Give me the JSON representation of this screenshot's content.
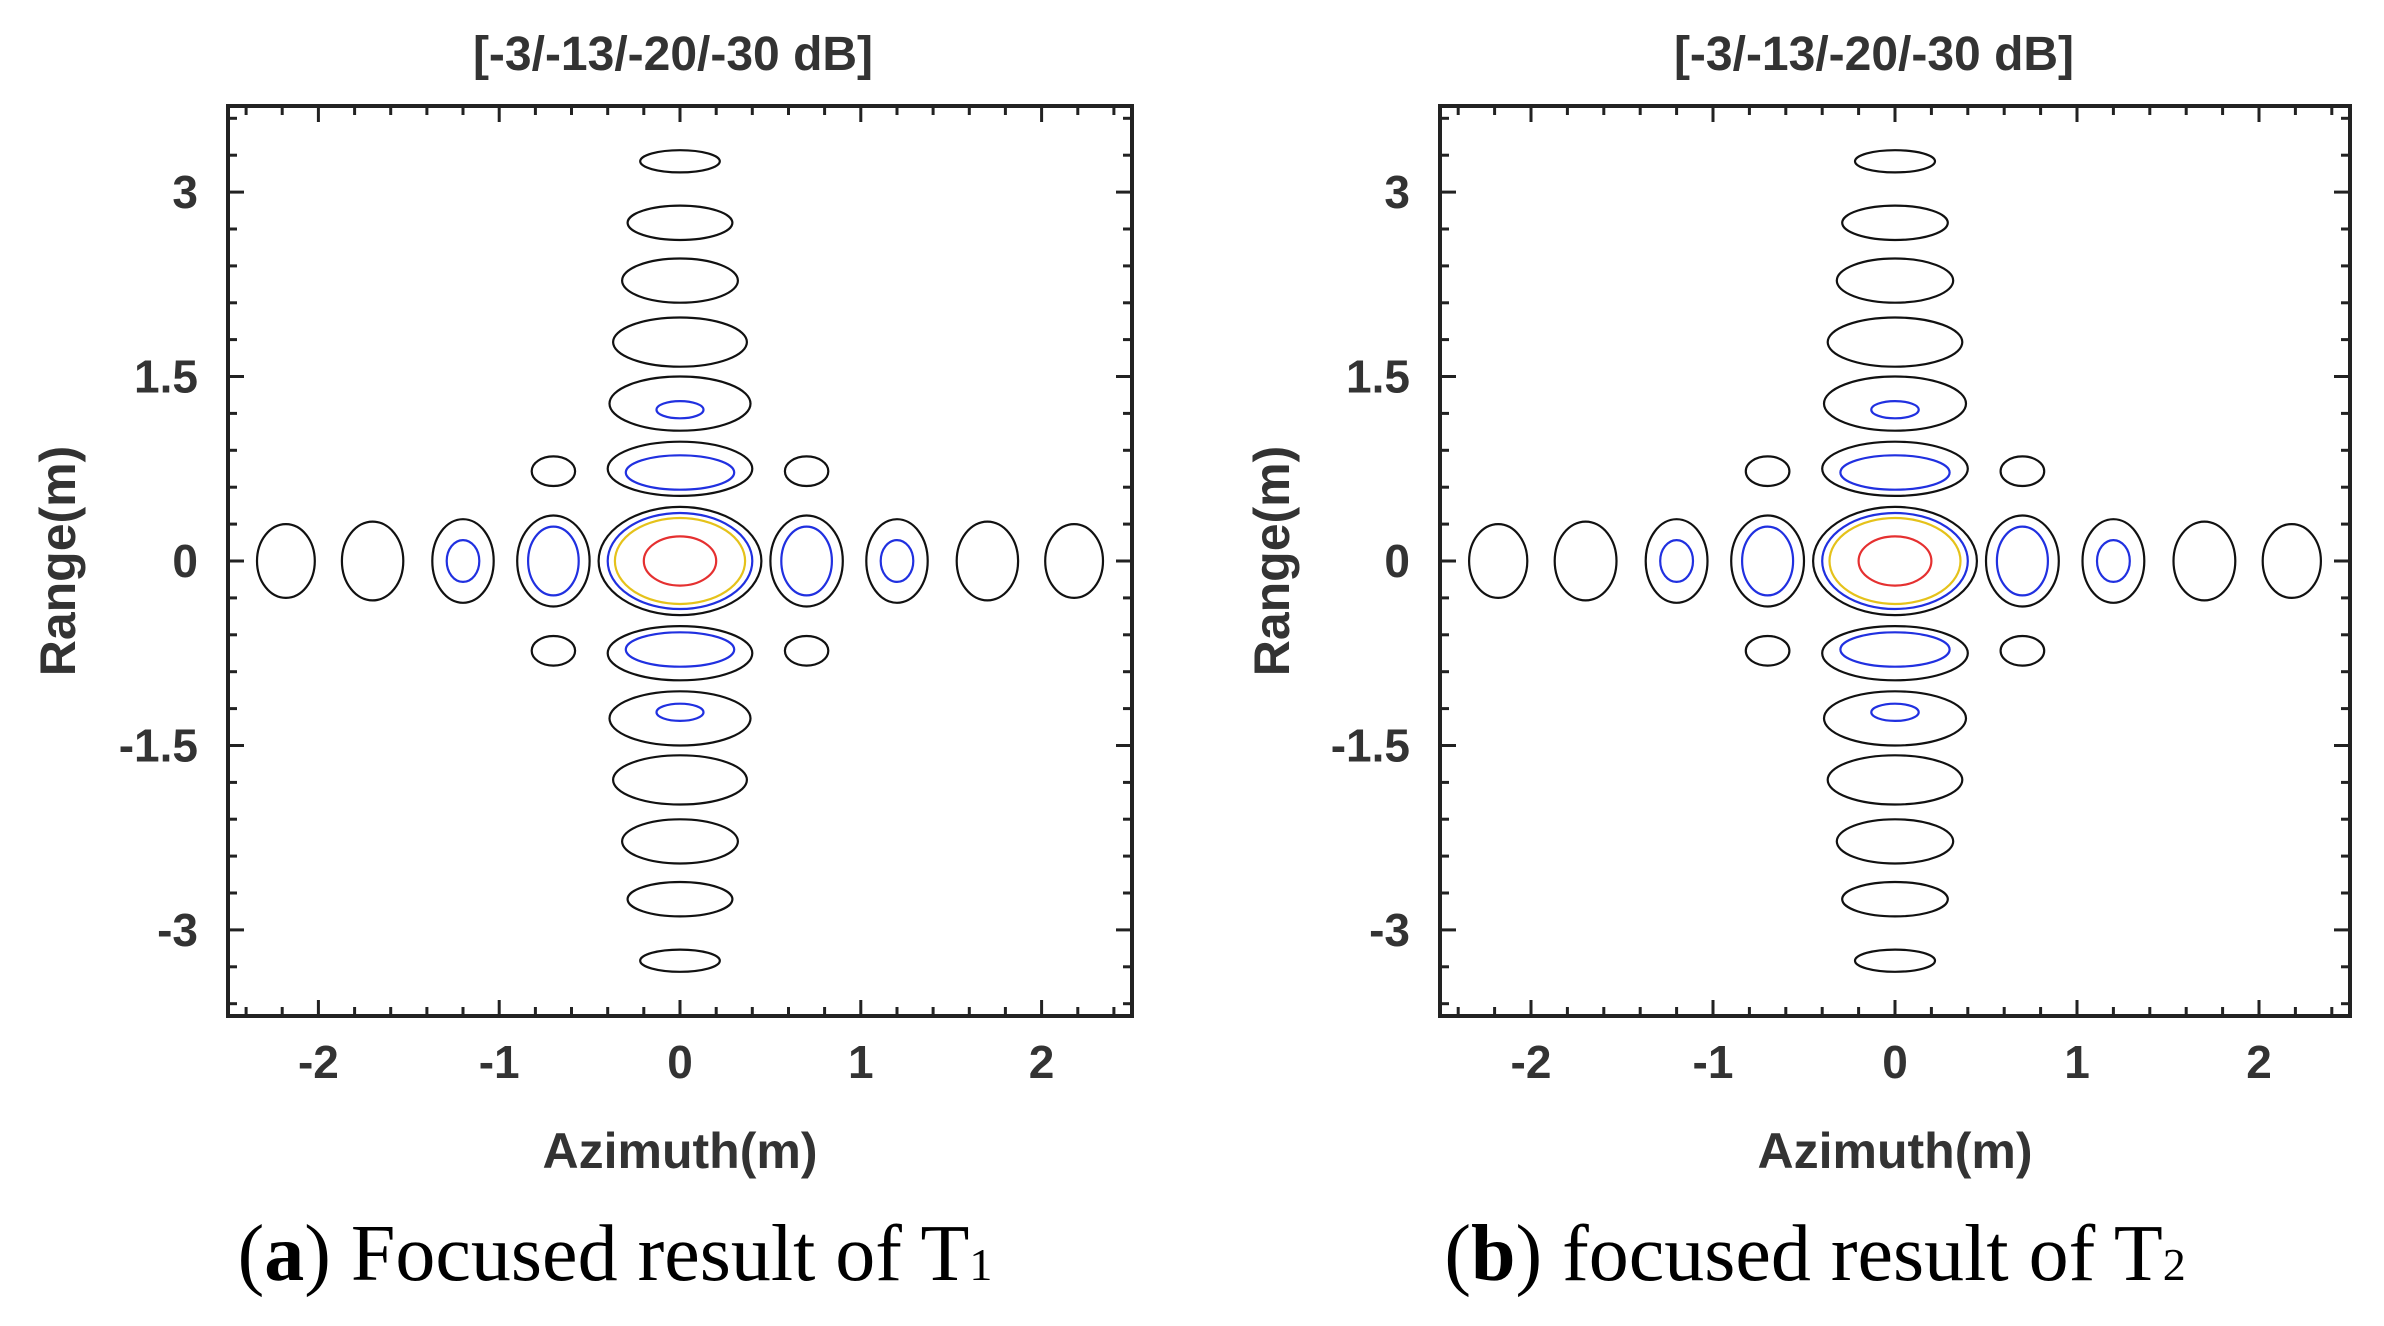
{
  "chart_data": [
    {
      "type": "contour",
      "title": "[-3/-13/-20/-30 dB]",
      "xlabel": "Azimuth(m)",
      "ylabel": "Range(m)",
      "xlim": [
        -2.5,
        2.5
      ],
      "ylim": [
        -3.7,
        3.7
      ],
      "xticks": [
        -2,
        -1,
        0,
        1,
        2
      ],
      "xtick_labels": [
        "-2",
        "-1",
        "0",
        "1",
        "2"
      ],
      "yticks": [
        3,
        1.5,
        0,
        -1.5,
        -3
      ],
      "ytick_labels": [
        "3",
        "1.5",
        "0",
        "-1.5",
        "-3"
      ],
      "contour_levels_db": [
        -3,
        -13,
        -20,
        -30
      ],
      "level_colors": {
        "-3": "#e53030",
        "-13": "#e5c21a",
        "-20": "#2030e0",
        "-30": "#111111"
      },
      "caption_label": "a",
      "caption_text": ") Focused result of T",
      "caption_subscript": "1",
      "contours": [
        {
          "level": -3,
          "cx": 0,
          "cy": 0,
          "rx": 0.2,
          "ry": 0.2
        },
        {
          "level": -13,
          "cx": 0,
          "cy": 0,
          "rx": 0.36,
          "ry": 0.35
        },
        {
          "level": -20,
          "cx": 0,
          "cy": 0,
          "rx": 0.4,
          "ry": 0.39
        },
        {
          "level": -30,
          "cx": 0,
          "cy": 0,
          "rx": 0.45,
          "ry": 0.44
        },
        {
          "level": -20,
          "cx": 0.7,
          "cy": 0,
          "rx": 0.14,
          "ry": 0.28
        },
        {
          "level": -30,
          "cx": 0.7,
          "cy": 0,
          "rx": 0.2,
          "ry": 0.37
        },
        {
          "level": -20,
          "cx": -0.7,
          "cy": 0,
          "rx": 0.14,
          "ry": 0.28
        },
        {
          "level": -30,
          "cx": -0.7,
          "cy": 0,
          "rx": 0.2,
          "ry": 0.37
        },
        {
          "level": -20,
          "cx": 1.2,
          "cy": 0,
          "rx": 0.09,
          "ry": 0.17
        },
        {
          "level": -30,
          "cx": 1.2,
          "cy": 0,
          "rx": 0.17,
          "ry": 0.34
        },
        {
          "level": -20,
          "cx": -1.2,
          "cy": 0,
          "rx": 0.09,
          "ry": 0.17
        },
        {
          "level": -30,
          "cx": -1.2,
          "cy": 0,
          "rx": 0.17,
          "ry": 0.34
        },
        {
          "level": -30,
          "cx": 1.7,
          "cy": 0,
          "rx": 0.17,
          "ry": 0.32
        },
        {
          "level": -30,
          "cx": -1.7,
          "cy": 0,
          "rx": 0.17,
          "ry": 0.32
        },
        {
          "level": -30,
          "cx": 2.18,
          "cy": 0,
          "rx": 0.16,
          "ry": 0.3
        },
        {
          "level": -30,
          "cx": -2.18,
          "cy": 0,
          "rx": 0.16,
          "ry": 0.3
        },
        {
          "level": -20,
          "cx": 0,
          "cy": 0.72,
          "rx": 0.3,
          "ry": 0.14
        },
        {
          "level": -30,
          "cx": 0,
          "cy": 0.75,
          "rx": 0.4,
          "ry": 0.22
        },
        {
          "level": -20,
          "cx": 0,
          "cy": -0.72,
          "rx": 0.3,
          "ry": 0.14
        },
        {
          "level": -30,
          "cx": 0,
          "cy": -0.75,
          "rx": 0.4,
          "ry": 0.22
        },
        {
          "level": -20,
          "cx": 0,
          "cy": 1.23,
          "rx": 0.13,
          "ry": 0.07
        },
        {
          "level": -30,
          "cx": 0,
          "cy": 1.28,
          "rx": 0.39,
          "ry": 0.22
        },
        {
          "level": -20,
          "cx": 0,
          "cy": -1.23,
          "rx": 0.13,
          "ry": 0.07
        },
        {
          "level": -30,
          "cx": 0,
          "cy": -1.28,
          "rx": 0.39,
          "ry": 0.22
        },
        {
          "level": -30,
          "cx": 0,
          "cy": 1.78,
          "rx": 0.37,
          "ry": 0.2
        },
        {
          "level": -30,
          "cx": 0,
          "cy": -1.78,
          "rx": 0.37,
          "ry": 0.2
        },
        {
          "level": -30,
          "cx": 0,
          "cy": 2.28,
          "rx": 0.32,
          "ry": 0.18
        },
        {
          "level": -30,
          "cx": 0,
          "cy": -2.28,
          "rx": 0.32,
          "ry": 0.18
        },
        {
          "level": -30,
          "cx": 0,
          "cy": 2.75,
          "rx": 0.29,
          "ry": 0.14
        },
        {
          "level": -30,
          "cx": 0,
          "cy": -2.75,
          "rx": 0.29,
          "ry": 0.14
        },
        {
          "level": -30,
          "cx": 0,
          "cy": 3.25,
          "rx": 0.22,
          "ry": 0.09
        },
        {
          "level": -30,
          "cx": 0,
          "cy": -3.25,
          "rx": 0.22,
          "ry": 0.09
        },
        {
          "level": -30,
          "cx": 0.7,
          "cy": 0.73,
          "rx": 0.12,
          "ry": 0.12
        },
        {
          "level": -30,
          "cx": -0.7,
          "cy": 0.73,
          "rx": 0.12,
          "ry": 0.12
        },
        {
          "level": -30,
          "cx": 0.7,
          "cy": -0.73,
          "rx": 0.12,
          "ry": 0.12
        },
        {
          "level": -30,
          "cx": -0.7,
          "cy": -0.73,
          "rx": 0.12,
          "ry": 0.12
        }
      ]
    },
    {
      "type": "contour",
      "title": "[-3/-13/-20/-30 dB]",
      "xlabel": "Azimuth(m)",
      "ylabel": "Range(m)",
      "xlim": [
        -2.5,
        2.5
      ],
      "ylim": [
        -3.7,
        3.7
      ],
      "xticks": [
        -2,
        -1,
        0,
        1,
        2
      ],
      "xtick_labels": [
        "-2",
        "-1",
        "0",
        "1",
        "2"
      ],
      "yticks": [
        3,
        1.5,
        0,
        -1.5,
        -3
      ],
      "ytick_labels": [
        "3",
        "1.5",
        "0",
        "-1.5",
        "-3"
      ],
      "contour_levels_db": [
        -3,
        -13,
        -20,
        -30
      ],
      "level_colors": {
        "-3": "#e53030",
        "-13": "#e5c21a",
        "-20": "#2030e0",
        "-30": "#111111"
      },
      "caption_label": "b",
      "caption_text": ") focused result of T",
      "caption_subscript": "2",
      "contours": [
        {
          "level": -3,
          "cx": 0,
          "cy": 0,
          "rx": 0.2,
          "ry": 0.2
        },
        {
          "level": -13,
          "cx": 0,
          "cy": 0,
          "rx": 0.36,
          "ry": 0.35
        },
        {
          "level": -20,
          "cx": 0,
          "cy": 0,
          "rx": 0.4,
          "ry": 0.39
        },
        {
          "level": -30,
          "cx": 0,
          "cy": 0,
          "rx": 0.45,
          "ry": 0.44
        },
        {
          "level": -20,
          "cx": 0.7,
          "cy": 0,
          "rx": 0.14,
          "ry": 0.28
        },
        {
          "level": -30,
          "cx": 0.7,
          "cy": 0,
          "rx": 0.2,
          "ry": 0.37
        },
        {
          "level": -20,
          "cx": -0.7,
          "cy": 0,
          "rx": 0.14,
          "ry": 0.28
        },
        {
          "level": -30,
          "cx": -0.7,
          "cy": 0,
          "rx": 0.2,
          "ry": 0.37
        },
        {
          "level": -20,
          "cx": 1.2,
          "cy": 0,
          "rx": 0.09,
          "ry": 0.17
        },
        {
          "level": -30,
          "cx": 1.2,
          "cy": 0,
          "rx": 0.17,
          "ry": 0.34
        },
        {
          "level": -20,
          "cx": -1.2,
          "cy": 0,
          "rx": 0.09,
          "ry": 0.17
        },
        {
          "level": -30,
          "cx": -1.2,
          "cy": 0,
          "rx": 0.17,
          "ry": 0.34
        },
        {
          "level": -30,
          "cx": 1.7,
          "cy": 0,
          "rx": 0.17,
          "ry": 0.32
        },
        {
          "level": -30,
          "cx": -1.7,
          "cy": 0,
          "rx": 0.17,
          "ry": 0.32
        },
        {
          "level": -30,
          "cx": 2.18,
          "cy": 0,
          "rx": 0.16,
          "ry": 0.3
        },
        {
          "level": -30,
          "cx": -2.18,
          "cy": 0,
          "rx": 0.16,
          "ry": 0.3
        },
        {
          "level": -20,
          "cx": 0,
          "cy": 0.72,
          "rx": 0.3,
          "ry": 0.14
        },
        {
          "level": -30,
          "cx": 0,
          "cy": 0.75,
          "rx": 0.4,
          "ry": 0.22
        },
        {
          "level": -20,
          "cx": 0,
          "cy": -0.72,
          "rx": 0.3,
          "ry": 0.14
        },
        {
          "level": -30,
          "cx": 0,
          "cy": -0.75,
          "rx": 0.4,
          "ry": 0.22
        },
        {
          "level": -20,
          "cx": 0,
          "cy": 1.23,
          "rx": 0.13,
          "ry": 0.07
        },
        {
          "level": -30,
          "cx": 0,
          "cy": 1.28,
          "rx": 0.39,
          "ry": 0.22
        },
        {
          "level": -20,
          "cx": 0,
          "cy": -1.23,
          "rx": 0.13,
          "ry": 0.07
        },
        {
          "level": -30,
          "cx": 0,
          "cy": -1.28,
          "rx": 0.39,
          "ry": 0.22
        },
        {
          "level": -30,
          "cx": 0,
          "cy": 1.78,
          "rx": 0.37,
          "ry": 0.2
        },
        {
          "level": -30,
          "cx": 0,
          "cy": -1.78,
          "rx": 0.37,
          "ry": 0.2
        },
        {
          "level": -30,
          "cx": 0,
          "cy": 2.28,
          "rx": 0.32,
          "ry": 0.18
        },
        {
          "level": -30,
          "cx": 0,
          "cy": -2.28,
          "rx": 0.32,
          "ry": 0.18
        },
        {
          "level": -30,
          "cx": 0,
          "cy": 2.75,
          "rx": 0.29,
          "ry": 0.14
        },
        {
          "level": -30,
          "cx": 0,
          "cy": -2.75,
          "rx": 0.29,
          "ry": 0.14
        },
        {
          "level": -30,
          "cx": 0,
          "cy": 3.25,
          "rx": 0.22,
          "ry": 0.09
        },
        {
          "level": -30,
          "cx": 0,
          "cy": -3.25,
          "rx": 0.22,
          "ry": 0.09
        },
        {
          "level": -30,
          "cx": 0.7,
          "cy": 0.73,
          "rx": 0.12,
          "ry": 0.12
        },
        {
          "level": -30,
          "cx": -0.7,
          "cy": 0.73,
          "rx": 0.12,
          "ry": 0.12
        },
        {
          "level": -30,
          "cx": 0.7,
          "cy": -0.73,
          "rx": 0.12,
          "ry": 0.12
        },
        {
          "level": -30,
          "cx": -0.7,
          "cy": -0.73,
          "rx": 0.12,
          "ry": 0.12
        }
      ]
    }
  ]
}
